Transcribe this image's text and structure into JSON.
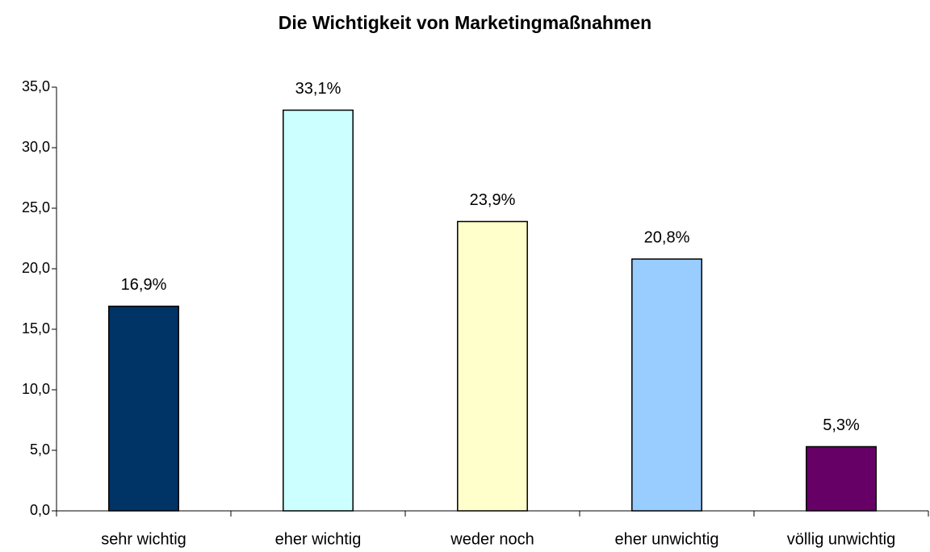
{
  "chart_data": {
    "type": "bar",
    "title": "Die Wichtigkeit von Marketingmaßnahmen",
    "categories": [
      "sehr wichtig",
      "eher wichtig",
      "weder noch",
      "eher unwichtig",
      "völlig unwichtig"
    ],
    "values": [
      16.9,
      33.1,
      23.9,
      20.8,
      5.3
    ],
    "value_labels": [
      "16,9%",
      "33,1%",
      "23,9%",
      "20,8%",
      "5,3%"
    ],
    "colors": [
      "#003366",
      "#ccffff",
      "#ffffcc",
      "#99ccff",
      "#660066"
    ],
    "ylim": [
      0,
      35
    ],
    "yticks": [
      {
        "value": 0,
        "label": "0,0"
      },
      {
        "value": 5,
        "label": "5,0"
      },
      {
        "value": 10,
        "label": "10,0"
      },
      {
        "value": 15,
        "label": "15,0"
      },
      {
        "value": 20,
        "label": "20,0"
      },
      {
        "value": 25,
        "label": "25,0"
      },
      {
        "value": 30,
        "label": "30,0"
      },
      {
        "value": 35,
        "label": "35,0"
      }
    ],
    "grid": false
  }
}
